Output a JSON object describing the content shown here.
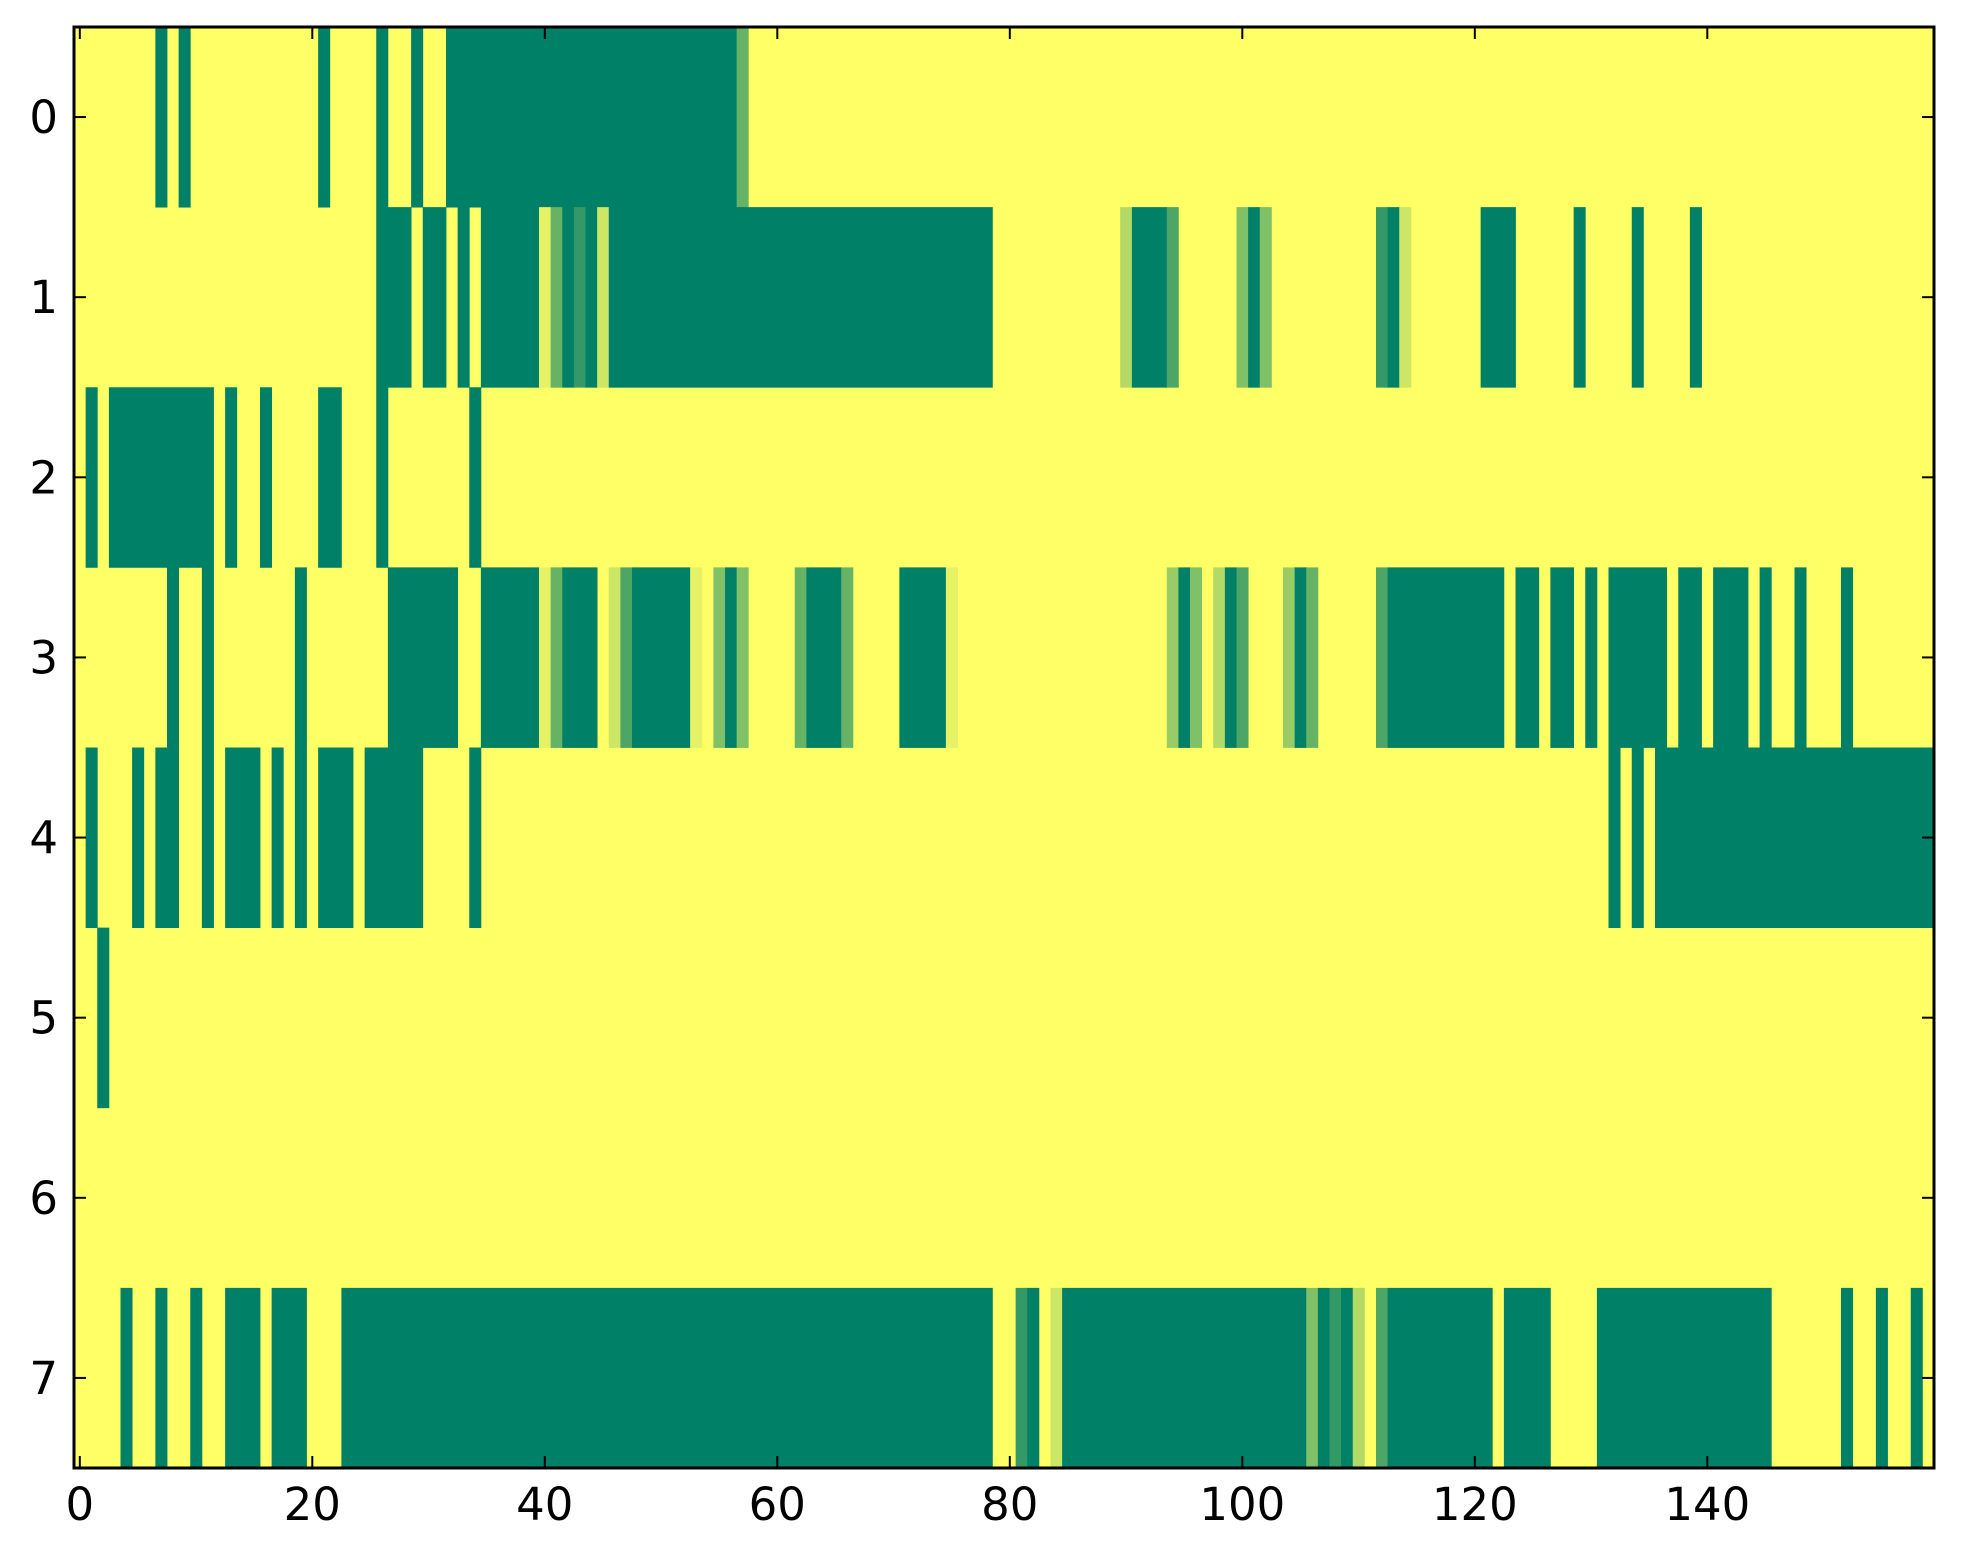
{
  "chart_data": {
    "type": "heatmap",
    "title": "",
    "xlabel": "",
    "ylabel": "",
    "n_rows": 8,
    "n_cols": 160,
    "xlim": [
      -0.5,
      159.5
    ],
    "ylim": [
      7.5,
      -0.5
    ],
    "x_ticks": [
      0,
      20,
      40,
      60,
      80,
      100,
      120,
      140
    ],
    "y_ticks": [
      0,
      1,
      2,
      3,
      4,
      5,
      6,
      7
    ],
    "colormap": "summer",
    "value_range": [
      0,
      1
    ],
    "colors": {
      "low": "#008066",
      "high": "#ffff66"
    },
    "default_value": 1,
    "rows": [
      [
        [
          7,
          7,
          0
        ],
        [
          9,
          9,
          0
        ],
        [
          21,
          21,
          0
        ],
        [
          26,
          26,
          0
        ],
        [
          29,
          29,
          0
        ],
        [
          32,
          56,
          0
        ],
        [
          57,
          57,
          0.4
        ]
      ],
      [
        [
          26,
          28,
          0
        ],
        [
          30,
          31,
          0
        ],
        [
          33,
          33,
          0
        ],
        [
          35,
          39,
          0
        ],
        [
          40,
          40,
          0.9
        ],
        [
          41,
          41,
          0.4
        ],
        [
          42,
          42,
          0
        ],
        [
          43,
          43,
          0.2
        ],
        [
          44,
          44,
          0
        ],
        [
          45,
          45,
          0.8
        ],
        [
          46,
          78,
          0
        ],
        [
          90,
          90,
          0.7
        ],
        [
          91,
          93,
          0
        ],
        [
          94,
          94,
          0.3
        ],
        [
          100,
          100,
          0.5
        ],
        [
          101,
          101,
          0
        ],
        [
          102,
          102,
          0.5
        ],
        [
          112,
          112,
          0.2
        ],
        [
          113,
          113,
          0
        ],
        [
          114,
          114,
          0.8
        ],
        [
          121,
          123,
          0
        ],
        [
          129,
          129,
          0
        ],
        [
          134,
          134,
          0
        ],
        [
          139,
          139,
          0
        ]
      ],
      [
        [
          1,
          1,
          0
        ],
        [
          3,
          11,
          0
        ],
        [
          13,
          13,
          0
        ],
        [
          16,
          16,
          0
        ],
        [
          21,
          22,
          0
        ],
        [
          26,
          26,
          0
        ],
        [
          34,
          34,
          0
        ]
      ],
      [
        [
          8,
          8,
          0
        ],
        [
          11,
          11,
          0
        ],
        [
          19,
          19,
          0
        ],
        [
          27,
          32,
          0
        ],
        [
          35,
          39,
          0
        ],
        [
          40,
          40,
          0.9
        ],
        [
          41,
          41,
          0.4
        ],
        [
          42,
          44,
          0
        ],
        [
          46,
          46,
          0.8
        ],
        [
          47,
          47,
          0.3
        ],
        [
          48,
          52,
          0
        ],
        [
          53,
          53,
          0.9
        ],
        [
          55,
          55,
          0.5
        ],
        [
          56,
          56,
          0
        ],
        [
          57,
          57,
          0.5
        ],
        [
          62,
          62,
          0.4
        ],
        [
          63,
          65,
          0
        ],
        [
          66,
          66,
          0.4
        ],
        [
          71,
          74,
          0
        ],
        [
          75,
          75,
          0.9
        ],
        [
          94,
          94,
          0.6
        ],
        [
          95,
          95,
          0
        ],
        [
          96,
          96,
          0.5
        ],
        [
          98,
          98,
          0.7
        ],
        [
          99,
          99,
          0
        ],
        [
          100,
          100,
          0.3
        ],
        [
          104,
          104,
          0.6
        ],
        [
          105,
          105,
          0
        ],
        [
          106,
          106,
          0.4
        ],
        [
          112,
          112,
          0.3
        ],
        [
          113,
          122,
          0
        ],
        [
          124,
          125,
          0
        ],
        [
          127,
          128,
          0
        ],
        [
          130,
          130,
          0
        ],
        [
          132,
          136,
          0
        ],
        [
          138,
          139,
          0
        ],
        [
          141,
          143,
          0
        ],
        [
          145,
          145,
          0
        ],
        [
          148,
          148,
          0
        ],
        [
          152,
          152,
          0
        ]
      ],
      [
        [
          1,
          1,
          0
        ],
        [
          5,
          5,
          0
        ],
        [
          7,
          8,
          0
        ],
        [
          11,
          11,
          0
        ],
        [
          13,
          15,
          0
        ],
        [
          17,
          17,
          0
        ],
        [
          19,
          19,
          0
        ],
        [
          21,
          23,
          0
        ],
        [
          25,
          29,
          0
        ],
        [
          34,
          34,
          0
        ],
        [
          132,
          132,
          0
        ],
        [
          134,
          134,
          0
        ],
        [
          136,
          159,
          0
        ]
      ],
      [
        [
          2,
          2,
          0
        ]
      ],
      [],
      [
        [
          4,
          4,
          0
        ],
        [
          7,
          7,
          0
        ],
        [
          10,
          10,
          0
        ],
        [
          13,
          15,
          0
        ],
        [
          17,
          19,
          0
        ],
        [
          23,
          78,
          0
        ],
        [
          81,
          81,
          0.2
        ],
        [
          82,
          82,
          0
        ],
        [
          84,
          84,
          0.8
        ],
        [
          85,
          105,
          0
        ],
        [
          106,
          106,
          0.5
        ],
        [
          107,
          107,
          0
        ],
        [
          108,
          108,
          0.2
        ],
        [
          109,
          109,
          0
        ],
        [
          110,
          110,
          0.7
        ],
        [
          112,
          112,
          0.3
        ],
        [
          113,
          121,
          0
        ],
        [
          123,
          126,
          0
        ],
        [
          131,
          145,
          0
        ],
        [
          152,
          152,
          0
        ],
        [
          155,
          155,
          0
        ],
        [
          158,
          158,
          0
        ]
      ]
    ]
  }
}
